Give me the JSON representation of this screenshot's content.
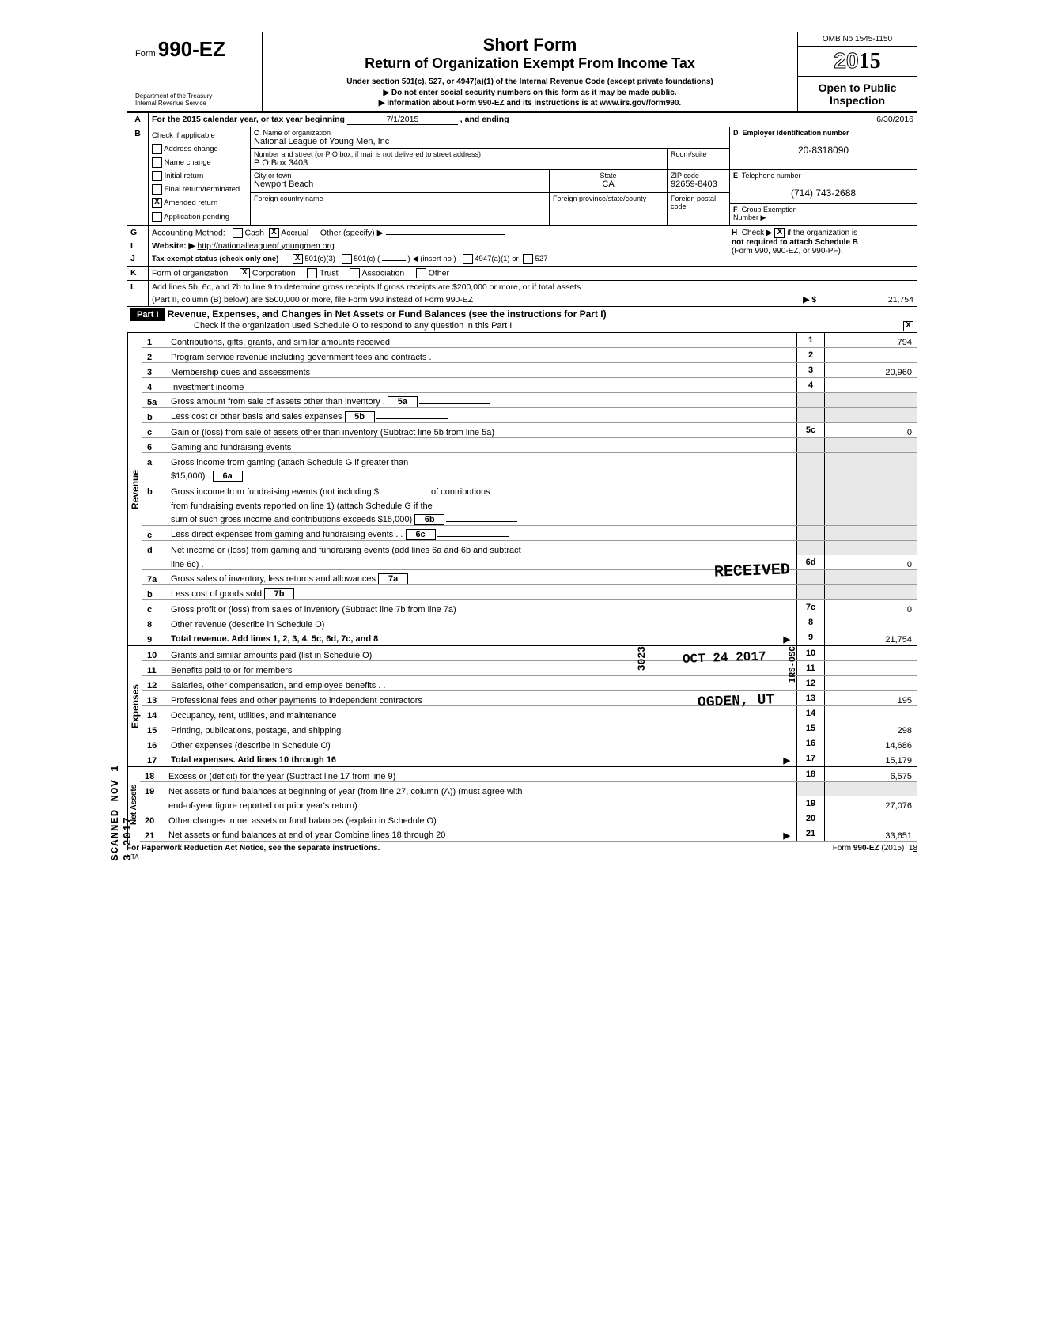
{
  "header": {
    "form_prefix": "Form",
    "form_no": "990-EZ",
    "dept1": "Department of the Treasury",
    "dept2": "Internal Revenue Service",
    "title1": "Short Form",
    "title2": "Return of Organization Exempt From Income Tax",
    "sub1": "Under section 501(c), 527, or 4947(a)(1) of the Internal Revenue Code (except private foundations)",
    "sub2": "▶   Do not enter social security numbers on this form as it may be made public.",
    "sub3": "▶     Information about Form 990-EZ and its instructions is at www.irs.gov/form990.",
    "omb": "OMB No 1545-1150",
    "year_outline": "20",
    "year_bold": "15",
    "open1": "Open to Public",
    "open2": "Inspection"
  },
  "rowA": {
    "label": "A",
    "text_pre": "For the 2015 calendar year, or tax year beginning",
    "begin": "7/1/2015",
    "mid": ", and ending",
    "end": "6/30/2016"
  },
  "rowB": {
    "label": "B",
    "check_label": "Check if applicable",
    "opts": [
      "Address change",
      "Name change",
      "Initial return",
      "Final return/terminated",
      "Amended return",
      "Application pending"
    ],
    "amended_checked": "X"
  },
  "rowC": {
    "label": "C",
    "name_label": "Name of organization",
    "name": "National League of Young Men, Inc",
    "addr_label": "Number and street (or P O  box, if mail is not delivered to street address)",
    "room_label": "Room/suite",
    "addr": "P O Box 3403",
    "city_label": "City or town",
    "state_label": "State",
    "zip_label": "ZIP code",
    "city": "Newport Beach",
    "state": "CA",
    "zip": "92659-8403",
    "fc_label": "Foreign country name",
    "fp_label": "Foreign province/state/county",
    "fz_label": "Foreign postal code"
  },
  "rowD": {
    "label": "D",
    "text": "Employer identification number",
    "val": "20-8318090"
  },
  "rowE": {
    "label": "E",
    "text": "Telephone number",
    "val": "(714) 743-2688"
  },
  "rowF": {
    "label": "F",
    "text": "Group Exemption",
    "text2": "Number ▶"
  },
  "rowG": {
    "label": "G",
    "text": "Accounting Method:",
    "cash": "Cash",
    "accrual": "Accrual",
    "accrual_checked": "X",
    "other": "Other (specify) ▶"
  },
  "rowH": {
    "label": "H",
    "text1": "Check ▶",
    "checked": "X",
    "text2": "if the organization is",
    "text3": "not required to attach Schedule B",
    "text4": "(Form 990, 990-EZ, or 990-PF)."
  },
  "rowI": {
    "label": "I",
    "text": "Website: ▶",
    "val": "http://nationalleagueof youngmen org"
  },
  "rowJ": {
    "label": "J",
    "text": "Tax-exempt status (check only one) —",
    "c3": "501(c)(3)",
    "c3_checked": "X",
    "c": "501(c) (",
    "c_tail": ") ◀ (insert no )",
    "a1": "4947(a)(1) or",
    "s527": "527"
  },
  "rowK": {
    "label": "K",
    "text": "Form of organization",
    "corp": "Corporation",
    "corp_checked": "X",
    "trust": "Trust",
    "assoc": "Association",
    "other": "Other"
  },
  "rowL": {
    "label": "L",
    "text1": "Add lines 5b, 6c, and 7b to line 9 to determine gross receipts  If gross receipts are $200,000 or more, or if total assets",
    "text2": "(Part II, column (B) below) are $500,000 or more, file Form 990 instead of Form 990-EZ",
    "arrow": "▶ $",
    "val": "21,754"
  },
  "part1": {
    "label": "Part I",
    "title": "Revenue, Expenses, and Changes in Net Assets or Fund Balances (see the instructions for Part I)",
    "check_line": "Check if the organization used Schedule O to respond to any question in this Part I",
    "checked": "X"
  },
  "revenue_label": "Revenue",
  "expenses_label": "Expenses",
  "netassets_label": "Net Assets",
  "lines": {
    "l1": {
      "no": "1",
      "desc": "Contributions, gifts, grants, and similar amounts received",
      "box": "1",
      "val": "794"
    },
    "l2": {
      "no": "2",
      "desc": "Program service revenue including government fees and contracts .",
      "box": "2",
      "val": ""
    },
    "l3": {
      "no": "3",
      "desc": "Membership dues and assessments",
      "box": "3",
      "val": "20,960"
    },
    "l4": {
      "no": "4",
      "desc": "Investment income",
      "box": "4",
      "val": ""
    },
    "l5a": {
      "no": "5a",
      "desc": "Gross amount from sale of assets other than inventory .",
      "sub": "5a"
    },
    "l5b": {
      "no": "b",
      "desc": "Less cost or other basis and sales expenses",
      "sub": "5b"
    },
    "l5c": {
      "no": "c",
      "desc": "Gain or (loss) from sale of assets other than inventory (Subtract line 5b from line 5a)",
      "box": "5c",
      "val": "0"
    },
    "l6": {
      "no": "6",
      "desc": "Gaming and fundraising events"
    },
    "l6a": {
      "no": "a",
      "desc": "Gross income from gaming (attach Schedule G if greater than",
      "desc2": "$15,000) .",
      "sub": "6a"
    },
    "l6b": {
      "no": "b",
      "desc": "Gross income from fundraising events (not including     $",
      "desc_tail": "of contributions",
      "desc2": "from fundraising events reported on line 1) (attach Schedule G if the",
      "desc3": "sum of such gross income and contributions exceeds $15,000)",
      "sub": "6b"
    },
    "l6c": {
      "no": "c",
      "desc": "Less  direct expenses from gaming and fundraising events  .  .",
      "sub": "6c"
    },
    "l6d": {
      "no": "d",
      "desc": "Net income or (loss) from gaming and fundraising events (add lines 6a and 6b and subtract",
      "desc2": "line 6c) .",
      "box": "6d",
      "val": "0"
    },
    "l7a": {
      "no": "7a",
      "desc": "Gross sales of inventory, less returns and allowances",
      "sub": "7a"
    },
    "l7b": {
      "no": "b",
      "desc": "Less  cost of goods sold",
      "sub": "7b"
    },
    "l7c": {
      "no": "c",
      "desc": "Gross profit or (loss) from sales of inventory (Subtract line 7b from line 7a)",
      "box": "7c",
      "val": "0"
    },
    "l8": {
      "no": "8",
      "desc": "Other revenue (describe in Schedule O)",
      "box": "8",
      "val": ""
    },
    "l9": {
      "no": "9",
      "desc": "Total revenue. Add lines 1, 2, 3, 4, 5c, 6d, 7c, and 8",
      "box": "9",
      "val": "21,754",
      "bold": true,
      "arrow": "▶"
    },
    "l10": {
      "no": "10",
      "desc": "Grants and similar amounts paid (list in Schedule O)",
      "box": "10",
      "val": ""
    },
    "l11": {
      "no": "11",
      "desc": "Benefits paid to or for members",
      "box": "11",
      "val": ""
    },
    "l12": {
      "no": "12",
      "desc": "Salaries, other compensation, and employee benefits .  .",
      "box": "12",
      "val": ""
    },
    "l13": {
      "no": "13",
      "desc": "Professional fees and other payments to independent contractors",
      "box": "13",
      "val": "195"
    },
    "l14": {
      "no": "14",
      "desc": "Occupancy, rent, utilities, and maintenance",
      "box": "14",
      "val": ""
    },
    "l15": {
      "no": "15",
      "desc": "Printing, publications, postage, and shipping",
      "box": "15",
      "val": "298"
    },
    "l16": {
      "no": "16",
      "desc": "Other expenses (describe in Schedule O)",
      "box": "16",
      "val": "14,686"
    },
    "l17": {
      "no": "17",
      "desc": "Total expenses. Add lines 10 through 16",
      "box": "17",
      "val": "15,179",
      "bold": true,
      "arrow": "▶"
    },
    "l18": {
      "no": "18",
      "desc": "Excess or (deficit) for the year (Subtract line 17 from line 9)",
      "box": "18",
      "val": "6,575"
    },
    "l19": {
      "no": "19",
      "desc": "Net assets or fund balances at beginning of year (from line 27, column (A)) (must agree with",
      "desc2": "end-of-year figure reported on prior year's return)",
      "box": "19",
      "val": "27,076"
    },
    "l20": {
      "no": "20",
      "desc": "Other changes in net assets or fund balances (explain in Schedule O)",
      "box": "20",
      "val": ""
    },
    "l21": {
      "no": "21",
      "desc": "Net assets or fund balances at end of year  Combine lines 18 through 20",
      "box": "21",
      "val": "33,651",
      "arrow": "▶"
    }
  },
  "stamps": {
    "received": "RECEIVED",
    "date": "OCT 24 2017",
    "ogden": "OGDEN, UT",
    "code1": "3023",
    "code2": "IRS-OSC",
    "scanned": "SCANNED  NOV 1 3 2017"
  },
  "footer": {
    "left": "For Paperwork Reduction Act Notice, see the separate instructions.",
    "hta": "HTA",
    "right": "Form 990-EZ (2015)  18"
  }
}
